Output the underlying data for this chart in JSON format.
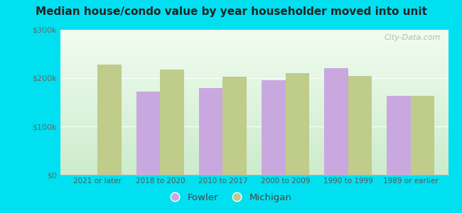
{
  "title": "Median house/condo value by year householder moved into unit",
  "categories": [
    "2021 or later",
    "2018 to 2020",
    "2010 to 2017",
    "2000 to 2009",
    "1990 to 1999",
    "1989 or earlier"
  ],
  "fowler_values": [
    0,
    172000,
    180000,
    195000,
    220000,
    163000
  ],
  "michigan_values": [
    228000,
    218000,
    203000,
    210000,
    205000,
    163000
  ],
  "fowler_color": "#c9a8e0",
  "michigan_color": "#bfcc8a",
  "background_outer": "#00e0f0",
  "ylim": [
    0,
    300000
  ],
  "yticks": [
    0,
    100000,
    200000,
    300000
  ],
  "ytick_labels": [
    "$0",
    "$100k",
    "$200k",
    "$300k"
  ],
  "legend_labels": [
    "Fowler",
    "Michigan"
  ],
  "bar_width": 0.38,
  "watermark": "City-Data.com"
}
